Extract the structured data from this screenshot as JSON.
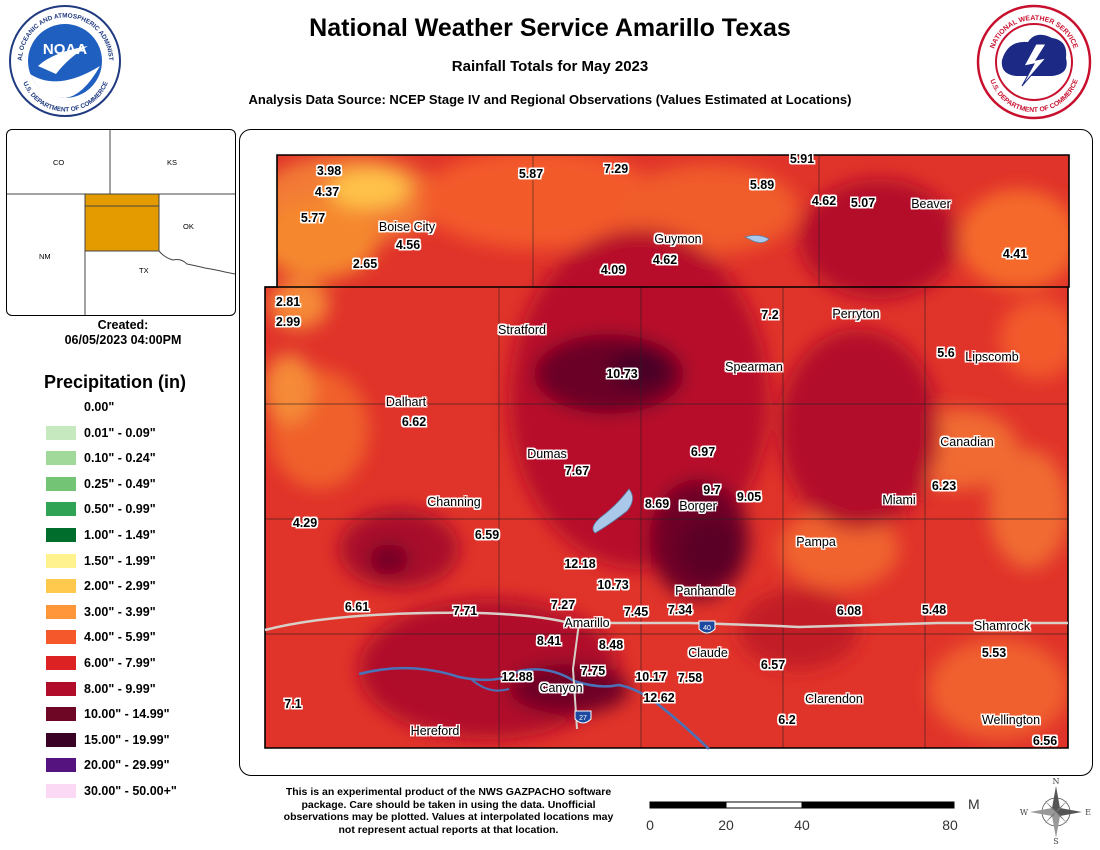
{
  "header": {
    "title": "National Weather Service Amarillo Texas",
    "subtitle": "Rainfall Totals for May 2023",
    "source": "Analysis Data Source: NCEP Stage IV and Regional Observations (Values Estimated at Locations)"
  },
  "logos": {
    "noaa_text": "NOAA",
    "noaa_ring_top": "NATIONAL OCEANIC AND ATMOSPHERIC ADMINISTRATION",
    "noaa_ring_bottom": "U.S. DEPARTMENT OF COMMERCE",
    "nws_ring_top": "NATIONAL WEATHER SERVICE",
    "nws_ring_bottom": "U.S. DEPARTMENT OF COMMERCE"
  },
  "inset": {
    "states": [
      "CO",
      "KS",
      "NM",
      "OK",
      "TX"
    ],
    "highlight_color": "#e39b00"
  },
  "created": {
    "label": "Created:",
    "datetime": "06/05/2023 04:00PM"
  },
  "legend": {
    "title": "Precipitation (in)",
    "items": [
      {
        "label": "0.00\"",
        "color": "#ffffff"
      },
      {
        "label": "0.01\" - 0.09\"",
        "color": "#c7e9c0"
      },
      {
        "label": "0.10\" - 0.24\"",
        "color": "#a1d99b"
      },
      {
        "label": "0.25\" - 0.49\"",
        "color": "#74c476"
      },
      {
        "label": "0.50\" - 0.99\"",
        "color": "#31a354"
      },
      {
        "label": "1.00\" - 1.49\"",
        "color": "#006d2c"
      },
      {
        "label": "1.50\" - 1.99\"",
        "color": "#fff28f"
      },
      {
        "label": "2.00\" - 2.99\"",
        "color": "#ffc94d"
      },
      {
        "label": "3.00\" - 3.99\"",
        "color": "#ff963a"
      },
      {
        "label": "4.00\" - 5.99\"",
        "color": "#f5582a"
      },
      {
        "label": "6.00\" - 7.99\"",
        "color": "#dc2222"
      },
      {
        "label": "8.00\" - 9.99\"",
        "color": "#b10c2a"
      },
      {
        "label": "10.00\" - 14.99\"",
        "color": "#6e0626"
      },
      {
        "label": "15.00\" - 19.99\"",
        "color": "#3a0224"
      },
      {
        "label": "20.00\" - 29.99\"",
        "color": "#54137f"
      },
      {
        "label": "30.00\" - 50.00+\"",
        "color": "#fbd8f4"
      }
    ]
  },
  "cities": [
    "Boise City",
    "Guymon",
    "Beaver",
    "Perryton",
    "Stratford",
    "Spearman",
    "Lipscomb",
    "Dalhart",
    "Canadian",
    "Dumas",
    "Borger",
    "Miami",
    "Channing",
    "Pampa",
    "Panhandle",
    "Amarillo",
    "Shamrock",
    "Claude",
    "Canyon",
    "Clarendon",
    "Hereford",
    "Wellington"
  ],
  "values": [
    "3.98",
    "7.29",
    "5.91",
    "5.87",
    "5.89",
    "4.37",
    "4.62",
    "5.07",
    "5.77",
    "4.56",
    "4.62",
    "4.41",
    "2.65",
    "4.09",
    "2.81",
    "2.99",
    "7.2",
    "10.73",
    "5.6",
    "6.62",
    "6.97",
    "7.67",
    "9.7",
    "9.05",
    "8.69",
    "6.23",
    "4.29",
    "6.59",
    "12.18",
    "10.73",
    "6.61",
    "7.71",
    "7.27",
    "7.45",
    "7.34",
    "6.08",
    "5.48",
    "8.41",
    "8.48",
    "5.53",
    "7.75",
    "12.88",
    "10.17",
    "7.58",
    "6.57",
    "12.62",
    "7.1",
    "6.2",
    "6.56"
  ],
  "highways": {
    "interstate_40": "40",
    "interstate_27": "27"
  },
  "disclaimer": "This is an experimental product of the NWS GAZPACHO software package. Care should be taken in using the data. Unofficial observations may be plotted. Values at interpolated locations may not represent actual reports at that location.",
  "scale": {
    "unit": "Miles",
    "ticks": [
      "0",
      "20",
      "40",
      "80"
    ]
  },
  "compass": [
    "N",
    "E",
    "S",
    "W"
  ]
}
